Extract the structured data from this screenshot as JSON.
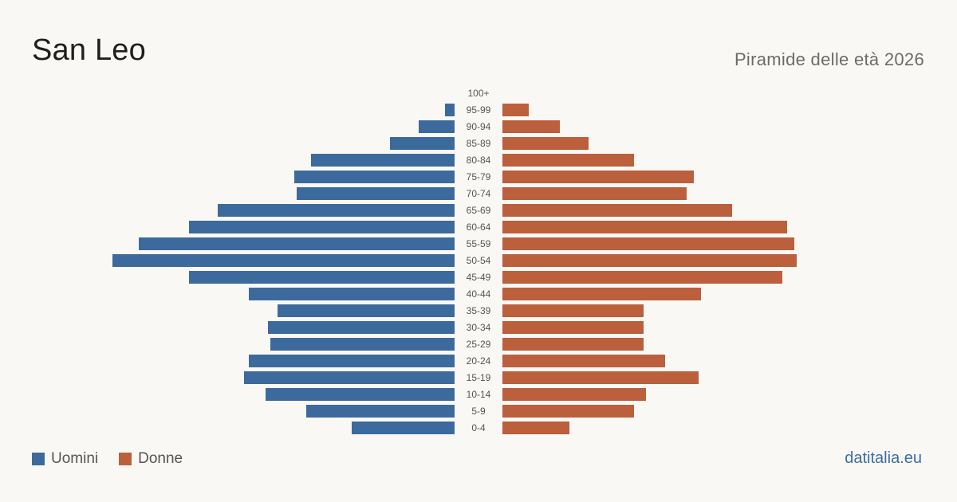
{
  "header": {
    "title": "San Leo",
    "subtitle": "Piramide delle età 2026"
  },
  "legend": {
    "men_label": "Uomini",
    "women_label": "Donne"
  },
  "source": "datitalia.eu",
  "colors": {
    "men": "#3d6a9c",
    "women": "#bb5f3d",
    "background": "#faf8f4",
    "age_label": "#555555"
  },
  "chart_data": {
    "type": "bar",
    "orientation": "horizontal-pyramid",
    "categories": [
      "100+",
      "95-99",
      "90-94",
      "85-89",
      "80-84",
      "75-79",
      "70-74",
      "65-69",
      "60-64",
      "55-59",
      "50-54",
      "45-49",
      "40-44",
      "35-39",
      "30-34",
      "25-29",
      "20-24",
      "15-19",
      "10-14",
      "5-9",
      "0-4"
    ],
    "series": [
      {
        "name": "Uomini",
        "side": "left",
        "values": [
          0,
          4,
          15,
          27,
          60,
          67,
          66,
          99,
          111,
          132,
          143,
          111,
          86,
          74,
          78,
          77,
          86,
          88,
          79,
          62,
          43
        ]
      },
      {
        "name": "Donne",
        "side": "right",
        "values": [
          0,
          11,
          24,
          36,
          55,
          80,
          77,
          96,
          119,
          122,
          123,
          117,
          83,
          59,
          59,
          59,
          68,
          82,
          60,
          55,
          28
        ]
      }
    ],
    "grid": false,
    "legend_position": "bottom-left"
  }
}
